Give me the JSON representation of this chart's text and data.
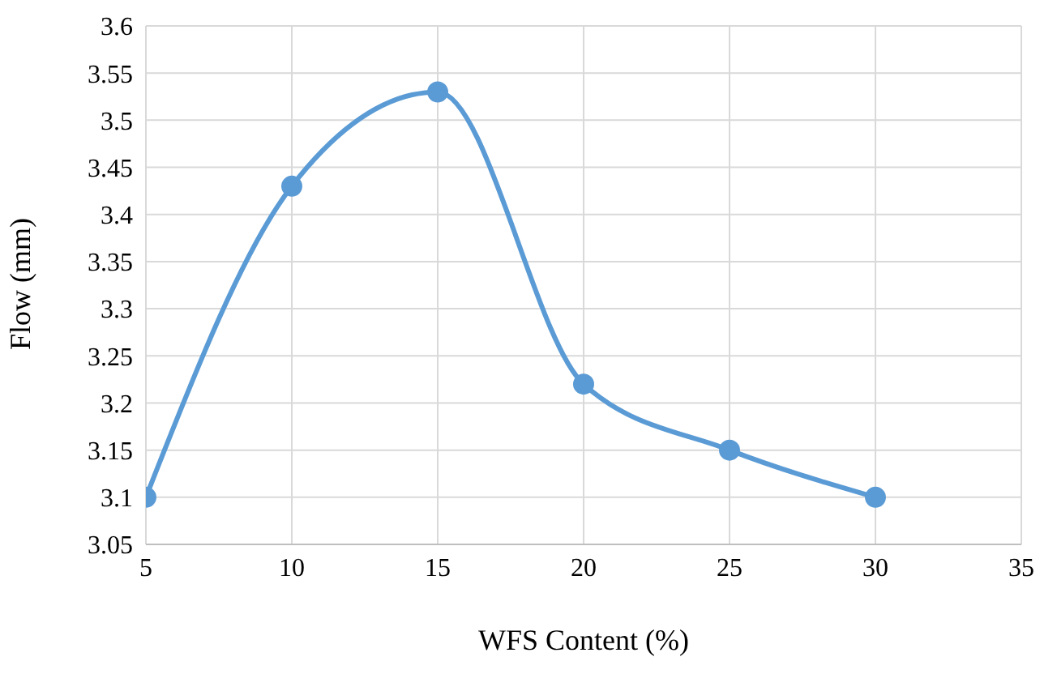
{
  "chart_data": {
    "type": "line",
    "xlabel": "WFS Content (%)",
    "ylabel": "Flow (mm)",
    "x": [
      5,
      10,
      15,
      20,
      25,
      30
    ],
    "series": [
      {
        "color": "#5b9bd5",
        "values": [
          3.1,
          3.43,
          3.53,
          3.22,
          3.15,
          3.1
        ]
      }
    ],
    "xlim": [
      5,
      35
    ],
    "xticks": [
      5,
      10,
      15,
      20,
      25,
      30,
      35
    ],
    "ylim": [
      3.05,
      3.6
    ],
    "yticks": [
      3.05,
      3.1,
      3.15,
      3.2,
      3.25,
      3.3,
      3.35,
      3.4,
      3.45,
      3.5,
      3.55,
      3.6
    ],
    "grid": true,
    "marker": "circle",
    "line_style": "solid",
    "legend": false
  }
}
